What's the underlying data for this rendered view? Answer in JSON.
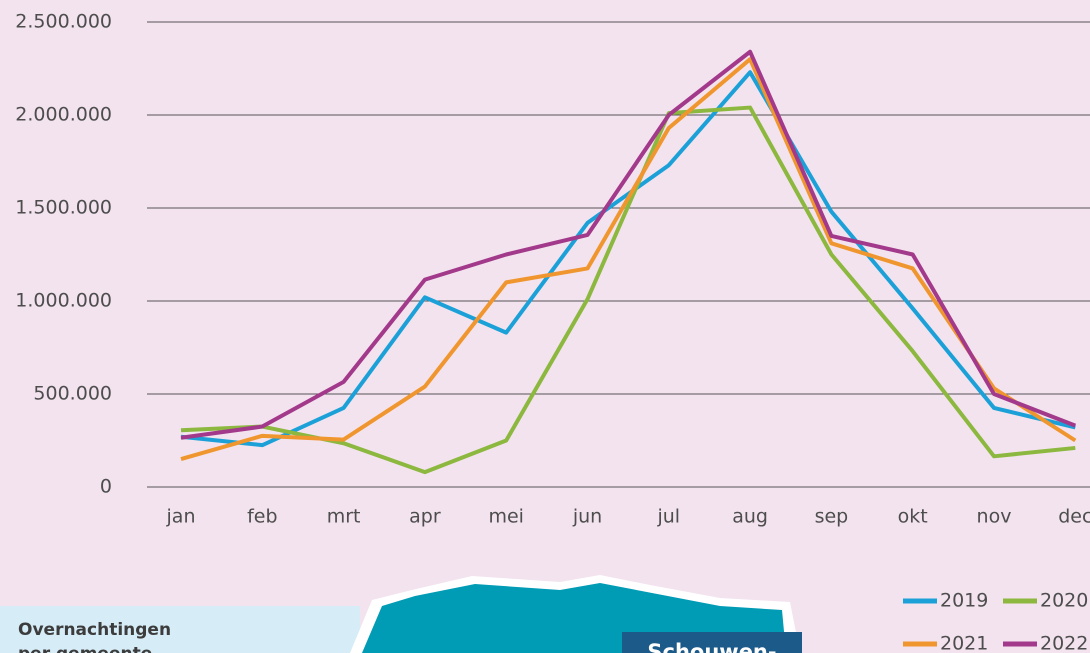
{
  "chart_data": {
    "type": "line",
    "categories": [
      "jan",
      "feb",
      "mrt",
      "apr",
      "mei",
      "jun",
      "jul",
      "aug",
      "sep",
      "okt",
      "nov",
      "dec"
    ],
    "series": [
      {
        "name": "2019",
        "color": "#1ba1d8",
        "values": [
          270000,
          225000,
          425000,
          1020000,
          830000,
          1420000,
          1730000,
          2230000,
          1480000,
          960000,
          425000,
          320000
        ]
      },
      {
        "name": "2020",
        "color": "#8cb83f",
        "values": [
          305000,
          325000,
          235000,
          80000,
          250000,
          1010000,
          2010000,
          2040000,
          1250000,
          730000,
          165000,
          210000
        ]
      },
      {
        "name": "2021",
        "color": "#f0962f",
        "values": [
          150000,
          275000,
          255000,
          540000,
          1100000,
          1175000,
          1930000,
          2300000,
          1310000,
          1175000,
          530000,
          250000
        ]
      },
      {
        "name": "2022",
        "color": "#a3398b",
        "values": [
          265000,
          325000,
          565000,
          1115000,
          1250000,
          1355000,
          2000000,
          2340000,
          1350000,
          1250000,
          500000,
          330000
        ]
      }
    ],
    "ylim": [
      0,
      2500000
    ],
    "yticks": [
      0,
      {
        "value": 500000,
        "label": "500.000"
      },
      {
        "value": 1000000,
        "label": "1.000.000"
      },
      {
        "value": 1500000,
        "label": "1.500.000"
      },
      {
        "value": 2000000,
        "label": "2.000.000"
      },
      {
        "value": 2500000,
        "label": "2.500.000"
      }
    ],
    "grid": true,
    "legend": "bottom-right"
  },
  "infobox": {
    "title": "Overnachtingen per gemeente"
  },
  "map": {
    "label": "Schouwen-"
  }
}
